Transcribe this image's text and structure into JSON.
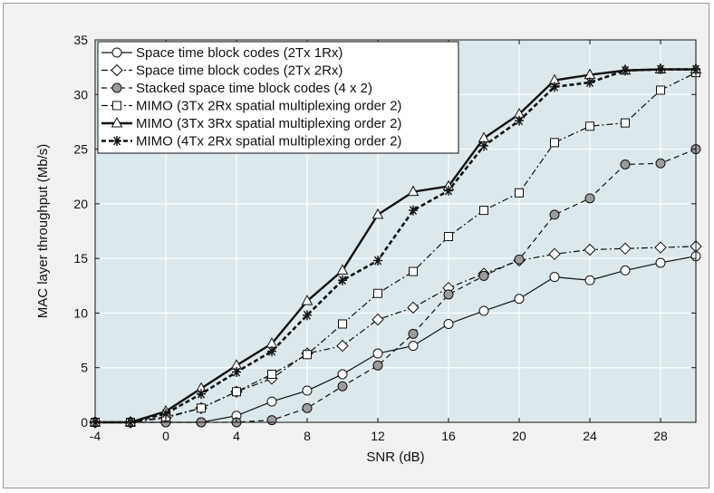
{
  "chart_data": {
    "type": "line",
    "title": "",
    "xlabel": "SNR (dB)",
    "ylabel": "MAC layer throughput (Mb/s)",
    "xlim": [
      -4,
      30
    ],
    "ylim": [
      0,
      35
    ],
    "xticks": [
      -4,
      0,
      4,
      8,
      12,
      16,
      20,
      24,
      28
    ],
    "yticks": [
      0,
      5,
      10,
      15,
      20,
      25,
      30,
      35
    ],
    "grid": true,
    "legend_position": "top-left",
    "x": [
      -4,
      -2,
      0,
      2,
      4,
      6,
      8,
      10,
      12,
      14,
      16,
      18,
      20,
      22,
      24,
      26,
      28,
      30
    ],
    "series": [
      {
        "name": "Space time block codes (2Tx 1Rx)",
        "marker": "circle",
        "line": "solid-thin",
        "values": [
          0,
          0,
          0,
          0,
          0.6,
          1.9,
          2.9,
          4.4,
          6.3,
          7.0,
          9.0,
          10.2,
          11.3,
          13.3,
          13.0,
          13.9,
          14.6,
          15.2
        ]
      },
      {
        "name": "Space time block codes (2Tx 2Rx)",
        "marker": "diamond",
        "line": "dashdot",
        "values": [
          0,
          0,
          0.4,
          1.3,
          2.8,
          4.0,
          6.3,
          7.0,
          9.4,
          10.5,
          12.3,
          13.6,
          14.8,
          15.4,
          15.8,
          15.9,
          16.0,
          16.1
        ]
      },
      {
        "name": "Stacked space time block codes (4 x 2)",
        "marker": "circle-filled",
        "line": "dashed",
        "values": [
          0,
          0,
          0,
          0,
          0,
          0.2,
          1.3,
          3.3,
          5.2,
          8.1,
          11.7,
          13.4,
          14.9,
          19.0,
          20.5,
          23.6,
          23.7,
          25.0
        ]
      },
      {
        "name": "MIMO (3Tx 2Rx spatial multiplexing order 2)",
        "marker": "square",
        "line": "dashdot",
        "values": [
          0,
          0,
          0.5,
          1.3,
          2.8,
          4.4,
          6.2,
          9.0,
          11.8,
          13.8,
          17.0,
          19.4,
          21.0,
          25.6,
          27.1,
          27.4,
          30.4,
          32.0
        ]
      },
      {
        "name": "MIMO (3Tx 3Rx spatial multiplexing order 2)",
        "marker": "triangle",
        "line": "solid-thick",
        "values": [
          0,
          0,
          1.0,
          3.1,
          5.2,
          7.2,
          11.1,
          13.9,
          19.0,
          21.1,
          21.6,
          26.0,
          28.2,
          31.3,
          31.8,
          32.2,
          32.3,
          32.3
        ]
      },
      {
        "name": "MIMO (4Tx 2Rx spatial multiplexing order 2)",
        "marker": "star",
        "line": "dashed-thick",
        "values": [
          0,
          0,
          0.8,
          2.6,
          4.6,
          6.5,
          9.8,
          13.0,
          14.8,
          19.4,
          21.2,
          25.3,
          27.6,
          30.7,
          31.1,
          32.2,
          32.3,
          32.3
        ]
      }
    ]
  },
  "colors": {
    "plot_background": "#dbe8ec",
    "frame_background": "#f1f1f1",
    "gridline": "#ffffff",
    "axis": "#111111",
    "legend_background": "#ffffff"
  }
}
